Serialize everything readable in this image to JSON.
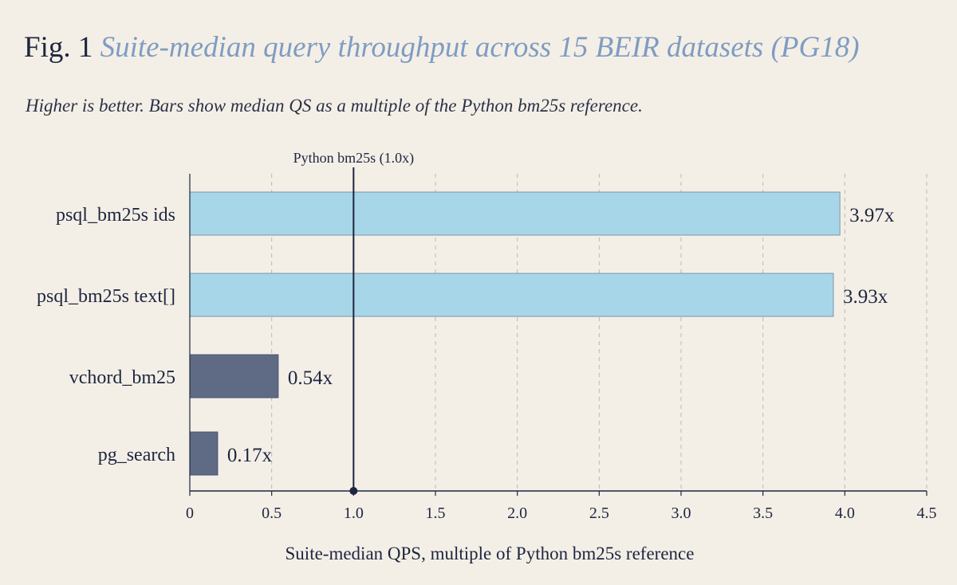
{
  "figure": {
    "label": "Fig. 1",
    "title": "Suite-median query throughput across 15 BEIR datasets (PG18)",
    "subtitle": "Higher is better. Bars show median QS as a multiple of the Python bm25s reference."
  },
  "colors": {
    "background": "#f4efe6",
    "bar_fast": "#a7d6e8",
    "bar_fast_stroke": "#7e93ad",
    "bar_slow": "#5f6b85",
    "bar_slow_stroke": "#4a5470",
    "axis": "#1d2640",
    "grid": "#b9b9b0",
    "title_accent": "#7f9cc2"
  },
  "chart_data": {
    "type": "bar",
    "orientation": "horizontal",
    "categories": [
      "psql_bm25s ids",
      "psql_bm25s text[]",
      "vchord_bm25",
      "pg_search"
    ],
    "values": [
      3.97,
      3.93,
      0.54,
      0.17
    ],
    "value_labels": [
      "3.97x",
      "3.93x",
      "0.54x",
      "0.17x"
    ],
    "xlabel": "Suite-median QPS, multiple of Python bm25s reference",
    "xlim": [
      0,
      4.5
    ],
    "xticks": [
      0,
      0.5,
      1.0,
      1.5,
      2.0,
      2.5,
      3.0,
      3.5,
      4.0,
      4.5
    ],
    "xtick_labels": [
      "0",
      "0.5",
      "1.0",
      "1.5",
      "2.0",
      "2.5",
      "3.0",
      "3.5",
      "4.0",
      "4.5"
    ],
    "grid": true,
    "reference_line": {
      "value": 1.0,
      "label": "Python bm25s (1.0x)"
    }
  }
}
